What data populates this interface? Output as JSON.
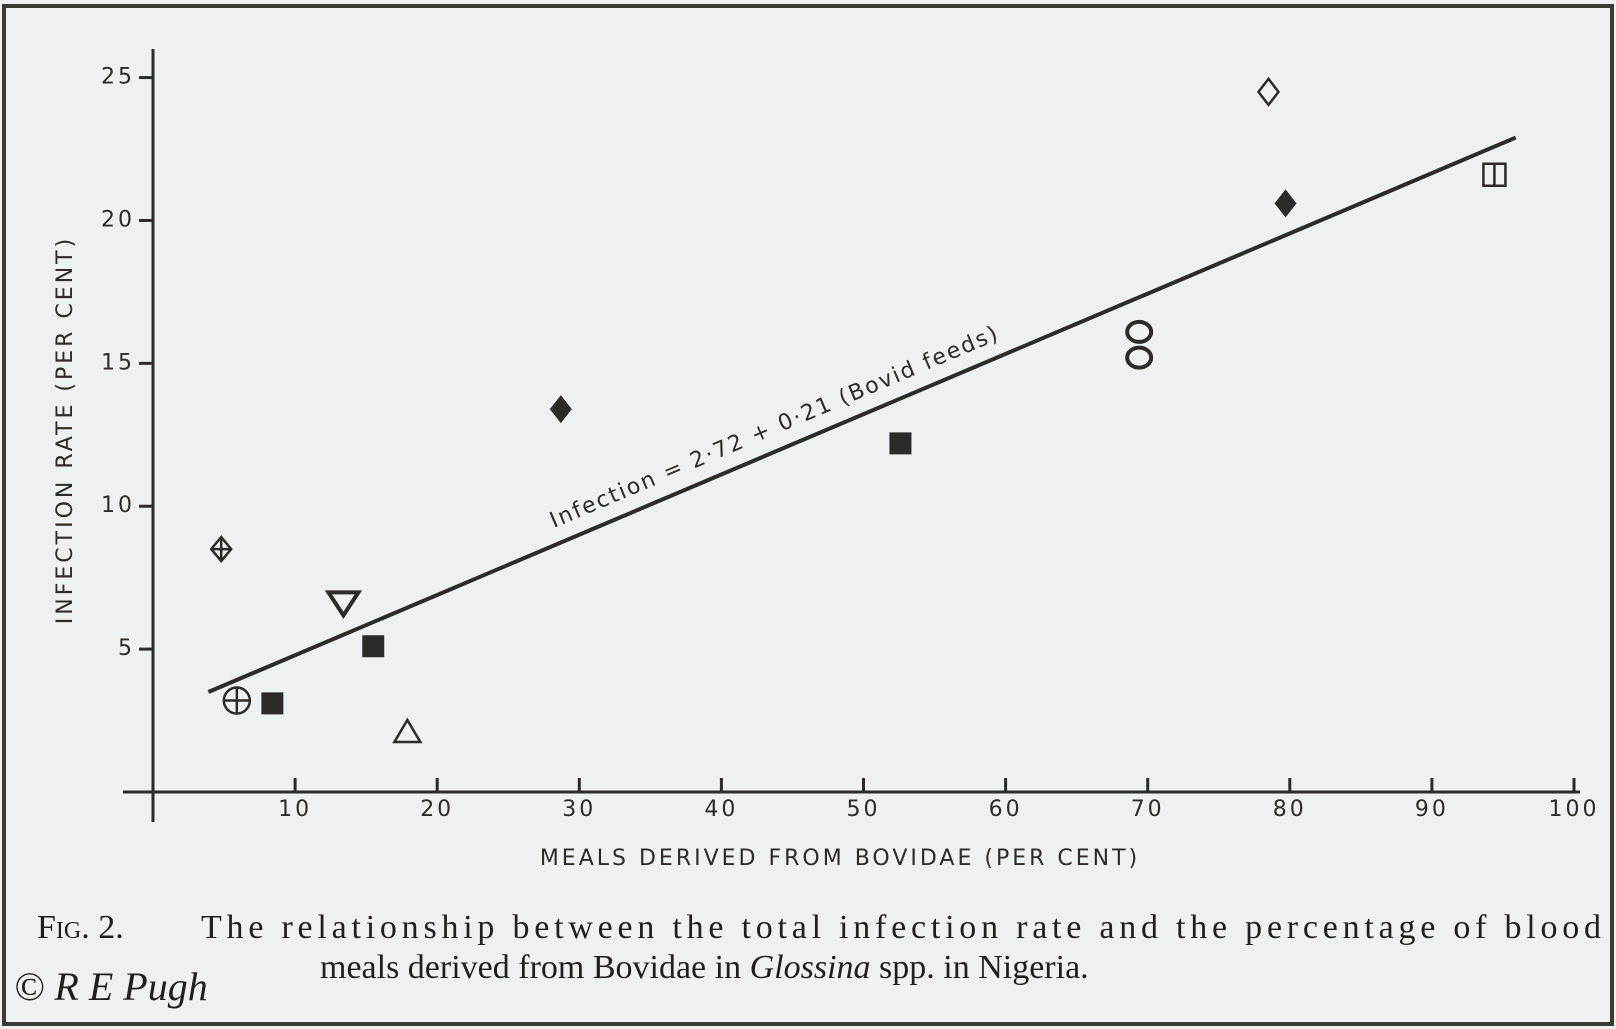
{
  "chart_data": {
    "type": "scatter",
    "x_label": "MEALS DERIVED FROM BOVIDAE (PER CENT)",
    "y_label": "INFECTION RATE (PER CENT)",
    "x": [
      4.8,
      5.9,
      8.4,
      13.4,
      15.5,
      17.9,
      28.7,
      52.6,
      69.4,
      69.4,
      78.5,
      79.7,
      94.4
    ],
    "values": [
      8.5,
      3.2,
      3.1,
      6.6,
      5.1,
      2.1,
      13.4,
      12.2,
      16.1,
      15.2,
      24.5,
      20.6,
      21.6
    ],
    "markers": [
      "crossed-diamond",
      "circle-plus",
      "filled-square",
      "down-triangle",
      "filled-square",
      "up-triangle",
      "filled-diamond",
      "filled-square",
      "circle",
      "circle",
      "open-diamond",
      "filled-diamond",
      "split-square"
    ],
    "color": "#2b2c27",
    "trend_line": {
      "x": [
        3.9,
        95.9
      ],
      "y": [
        3.5,
        22.9
      ]
    },
    "annotation": "Infection = 2·72 + 0·21 (Bovid feeds)",
    "xlim": [
      0,
      100
    ],
    "ylim": [
      0,
      26
    ],
    "xticks": [
      10,
      20,
      30,
      40,
      50,
      60,
      70,
      80,
      90,
      100
    ],
    "yticks": [
      5,
      10,
      15,
      20,
      25
    ],
    "grid": false
  },
  "caption": {
    "label": "Fig. 2.",
    "line1": "The relationship between the total infection rate and the percentage of blood",
    "line2": [
      "meals derived from Bovidae in ",
      "Glossina",
      " spp. in Nigeria."
    ]
  },
  "copyright": "© R E Pugh"
}
